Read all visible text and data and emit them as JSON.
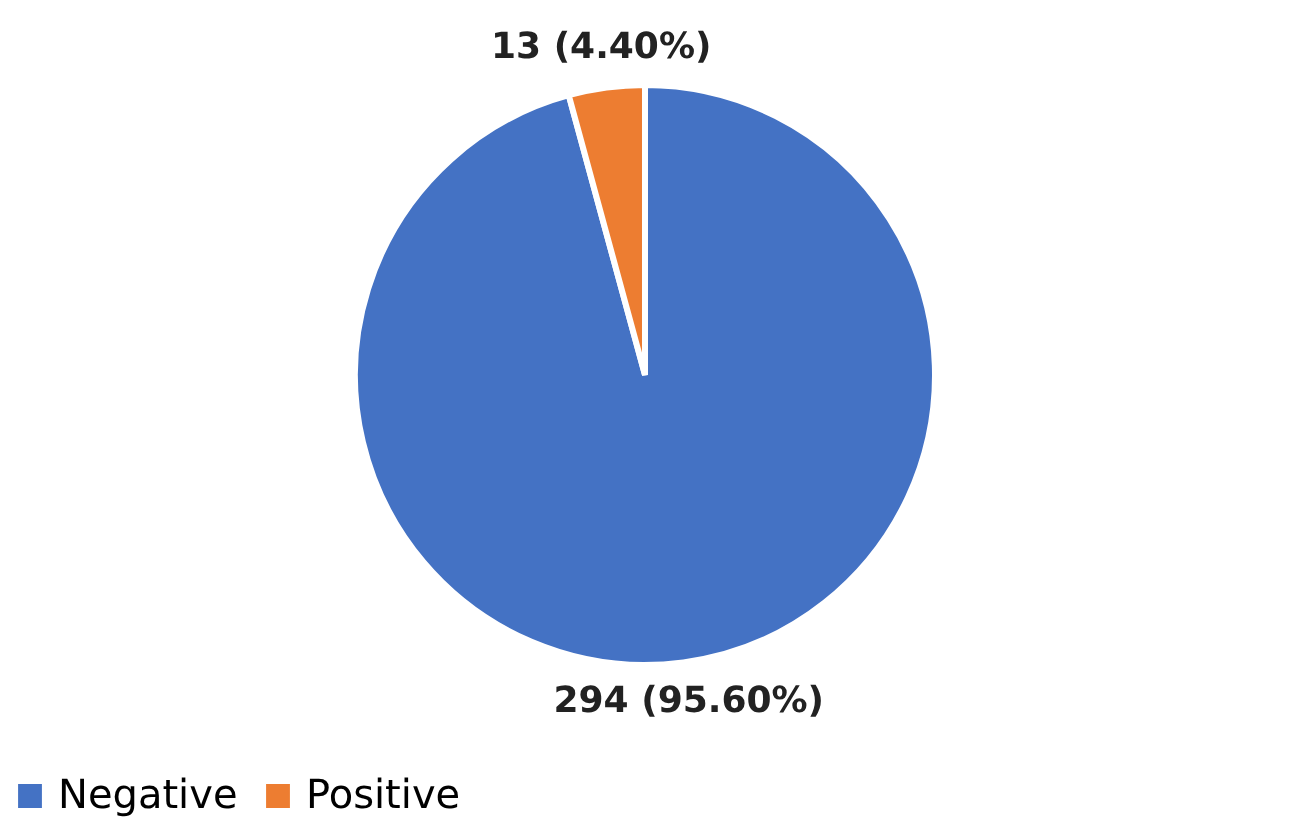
{
  "chart_data": {
    "type": "pie",
    "categories": [
      "Negative",
      "Positive"
    ],
    "values": [
      294,
      13
    ],
    "colors": [
      "#4472c4",
      "#ed7d31"
    ],
    "value_labels": [
      "294 (95.60%)",
      "13 (4.40%)"
    ],
    "legend": "bottom"
  }
}
